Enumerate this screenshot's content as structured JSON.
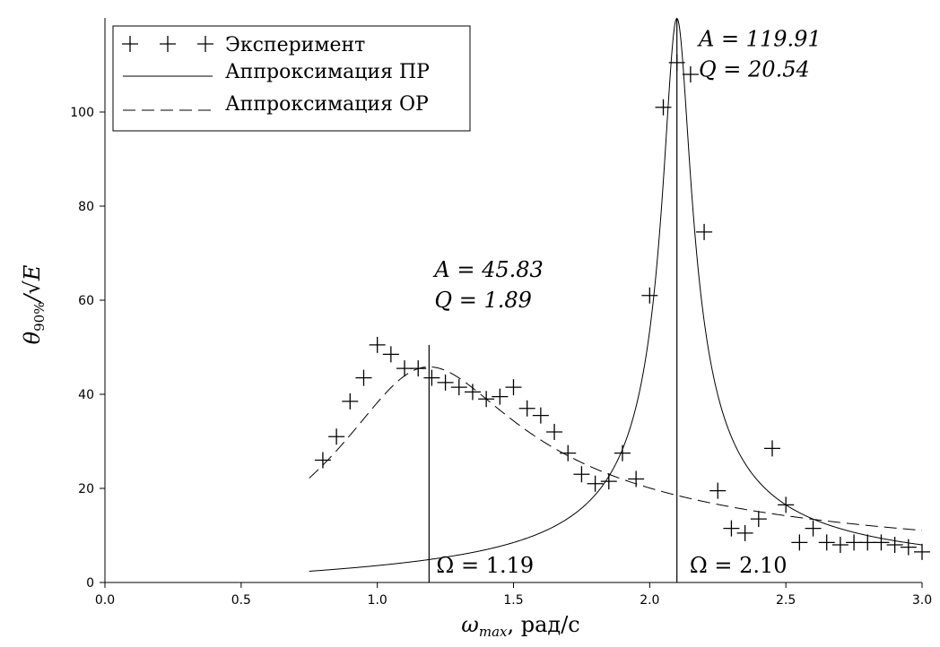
{
  "chart_data": {
    "type": "scatter",
    "title": "",
    "xlabel": {
      "main": "ω",
      "sub": "max",
      "unit": ", рад/с"
    },
    "ylabel": {
      "main": "θ",
      "sub": "90%",
      "rest": "/√E"
    },
    "xlim": [
      0.0,
      3.0
    ],
    "ylim": [
      0,
      120
    ],
    "x_ticks": [
      "0.0",
      "0.5",
      "1.0",
      "1.5",
      "2.0",
      "2.5",
      "3.0"
    ],
    "y_ticks": [
      "0",
      "20",
      "40",
      "60",
      "80",
      "100"
    ],
    "legend_position": "top-left",
    "legend": [
      {
        "label": "Эксперимент",
        "style": "markers"
      },
      {
        "label": "Аппроксимация ПР",
        "style": "solid"
      },
      {
        "label": "Аппроксимация ОР",
        "style": "dashed"
      }
    ],
    "series": [
      {
        "name": "Эксперимент",
        "style": "markers",
        "points": [
          [
            0.8,
            26
          ],
          [
            0.85,
            31
          ],
          [
            0.9,
            38.5
          ],
          [
            0.95,
            43.5
          ],
          [
            1.0,
            50.5
          ],
          [
            1.05,
            48.5
          ],
          [
            1.1,
            45.5
          ],
          [
            1.15,
            45.5
          ],
          [
            1.2,
            43.5
          ],
          [
            1.25,
            42.5
          ],
          [
            1.3,
            41.5
          ],
          [
            1.35,
            40.5
          ],
          [
            1.4,
            39
          ],
          [
            1.45,
            39.5
          ],
          [
            1.5,
            41.5
          ],
          [
            1.55,
            37
          ],
          [
            1.6,
            35.5
          ],
          [
            1.65,
            32
          ],
          [
            1.7,
            27.5
          ],
          [
            1.75,
            23
          ],
          [
            1.8,
            21
          ],
          [
            1.85,
            21.5
          ],
          [
            1.9,
            27.5
          ],
          [
            1.95,
            22
          ],
          [
            2.0,
            61
          ],
          [
            2.05,
            101
          ],
          [
            2.1,
            110.5
          ],
          [
            2.15,
            108
          ],
          [
            2.2,
            74.5
          ],
          [
            2.25,
            19.5
          ],
          [
            2.3,
            11.5
          ],
          [
            2.35,
            10.5
          ],
          [
            2.4,
            13.5
          ],
          [
            2.45,
            28.5
          ],
          [
            2.5,
            16.5
          ],
          [
            2.55,
            8.5
          ],
          [
            2.6,
            11.5
          ],
          [
            2.65,
            8.5
          ],
          [
            2.7,
            8
          ],
          [
            2.75,
            8.5
          ],
          [
            2.8,
            8.5
          ],
          [
            2.85,
            8.5
          ],
          [
            2.9,
            8
          ],
          [
            2.95,
            7.5
          ],
          [
            3.0,
            6.5
          ]
        ]
      },
      {
        "name": "Аппроксимация ПР",
        "style": "solid",
        "model": "resonance",
        "A": 119.91,
        "Q": 20.54,
        "omega0": 2.1,
        "x_range": [
          0.75,
          3.0
        ]
      },
      {
        "name": "Аппроксимация ОР",
        "style": "dashed",
        "model": "resonance",
        "A": 45.83,
        "Q": 1.89,
        "omega0": 1.19,
        "x_range": [
          0.75,
          3.0
        ]
      }
    ],
    "annotations": [
      {
        "A_text": "A = 119.91",
        "Q_text": "Q = 20.54",
        "omega_text": "Ω = 2.10",
        "omega": 2.1,
        "line_top": 119.91
      },
      {
        "A_text": "A = 45.83",
        "Q_text": "Q = 1.89",
        "omega_text": "Ω = 1.19",
        "omega": 1.19,
        "line_top": 50.5
      }
    ]
  }
}
